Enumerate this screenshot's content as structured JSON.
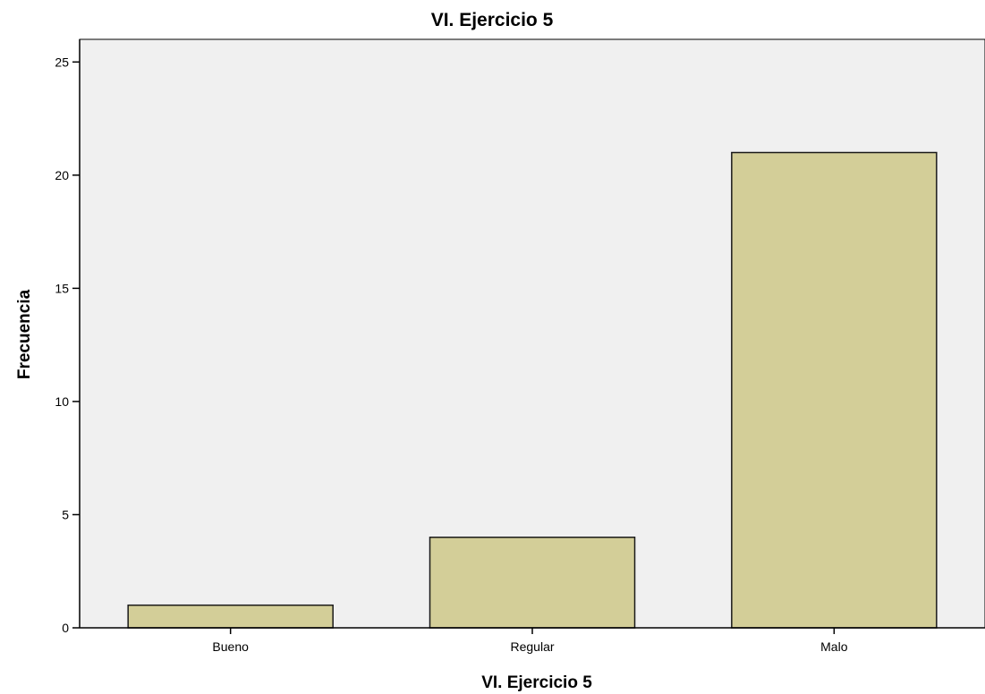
{
  "chart_data": {
    "type": "bar",
    "title": "VI. Ejercicio 5",
    "xlabel": "VI. Ejercicio 5",
    "ylabel": "Frecuencia",
    "categories": [
      "Bueno",
      "Regular",
      "Malo"
    ],
    "values": [
      1,
      4,
      21
    ],
    "ylim": [
      0,
      26
    ],
    "yticks": [
      0,
      5,
      10,
      15,
      20,
      25
    ],
    "grid": false,
    "legend": "none",
    "colors": {
      "plot_background": "#f0f0f0",
      "bar_fill": "#d3ce98",
      "bar_stroke": "#1a1a1a",
      "axis": "#000000"
    }
  }
}
